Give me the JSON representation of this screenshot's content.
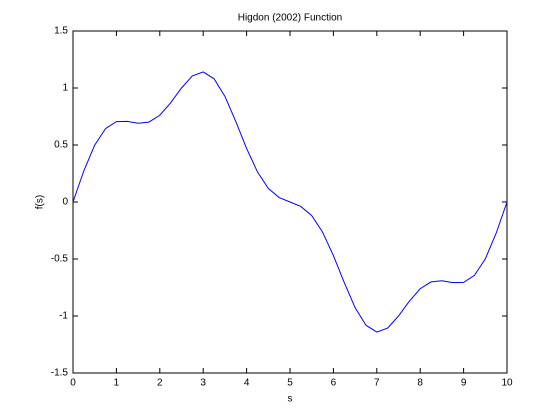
{
  "chart_data": {
    "type": "line",
    "title": "Higdon (2002) Function",
    "xlabel": "s",
    "ylabel": "f(s)",
    "x": [
      0,
      0.25,
      0.5,
      0.75,
      1,
      1.25,
      1.5,
      1.75,
      2,
      2.25,
      2.5,
      2.75,
      3,
      3.25,
      3.5,
      3.75,
      4,
      4.25,
      4.5,
      4.75,
      5,
      5.25,
      5.5,
      5.75,
      6,
      6.25,
      6.5,
      6.75,
      7,
      7.25,
      7.5,
      7.75,
      8,
      8.25,
      8.5,
      8.75,
      9,
      9.25,
      9.5,
      9.75,
      10
    ],
    "series": [
      {
        "color": "#0000ff",
        "values": [
          0,
          0.274,
          0.499,
          0.644,
          0.705,
          0.707,
          0.691,
          0.701,
          0.761,
          0.87,
          1.0,
          1.106,
          1.141,
          1.081,
          0.927,
          0.707,
          0.47,
          0.264,
          0.119,
          0.039,
          0,
          -0.039,
          -0.119,
          -0.264,
          -0.47,
          -0.707,
          -0.927,
          -1.081,
          -1.141,
          -1.106,
          -1.0,
          -0.87,
          -0.761,
          -0.701,
          -0.691,
          -0.707,
          -0.705,
          -0.644,
          -0.499,
          -0.274,
          0
        ]
      }
    ],
    "xlim": [
      0,
      10
    ],
    "xticks": [
      0,
      1,
      2,
      3,
      4,
      5,
      6,
      7,
      8,
      9,
      10
    ],
    "ylim": [
      -1.5,
      1.5
    ],
    "yticks": [
      -1.5,
      -1,
      -0.5,
      0,
      0.5,
      1,
      1.5
    ],
    "grid": false
  }
}
